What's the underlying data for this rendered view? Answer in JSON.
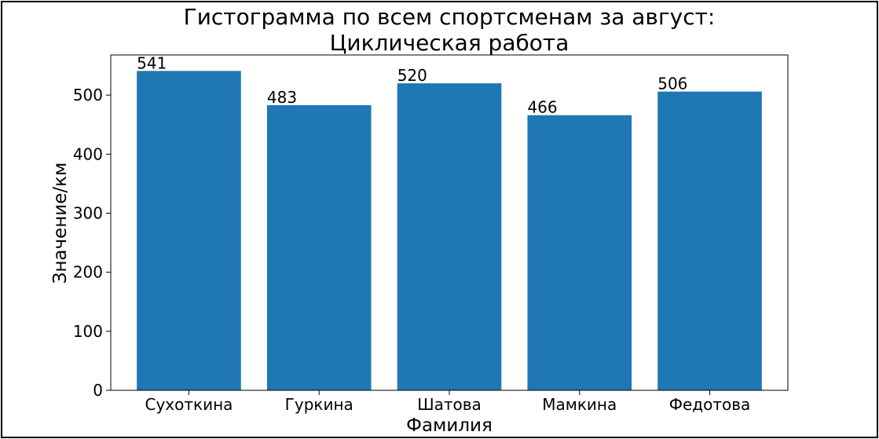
{
  "chart_data": {
    "type": "bar",
    "title_line1": "Гистограмма по всем спортсменам за август:",
    "title_line2": "Циклическая работа",
    "xlabel": "Фамилия",
    "ylabel": "Значение/км",
    "categories": [
      "Сухоткина",
      "Гуркина",
      "Шатова",
      "Мамкина",
      "Федотова"
    ],
    "values": [
      541,
      483,
      520,
      466,
      506
    ],
    "data_labels": [
      "541",
      "483",
      "520",
      "466",
      "506"
    ],
    "ylim": [
      0,
      568
    ],
    "yticks": [
      0,
      100,
      200,
      300,
      400,
      500
    ],
    "ytick_labels": [
      "0",
      "100",
      "200",
      "300",
      "400",
      "500"
    ],
    "bar_color": "#1f77b4",
    "grid": false,
    "legend": "none"
  }
}
